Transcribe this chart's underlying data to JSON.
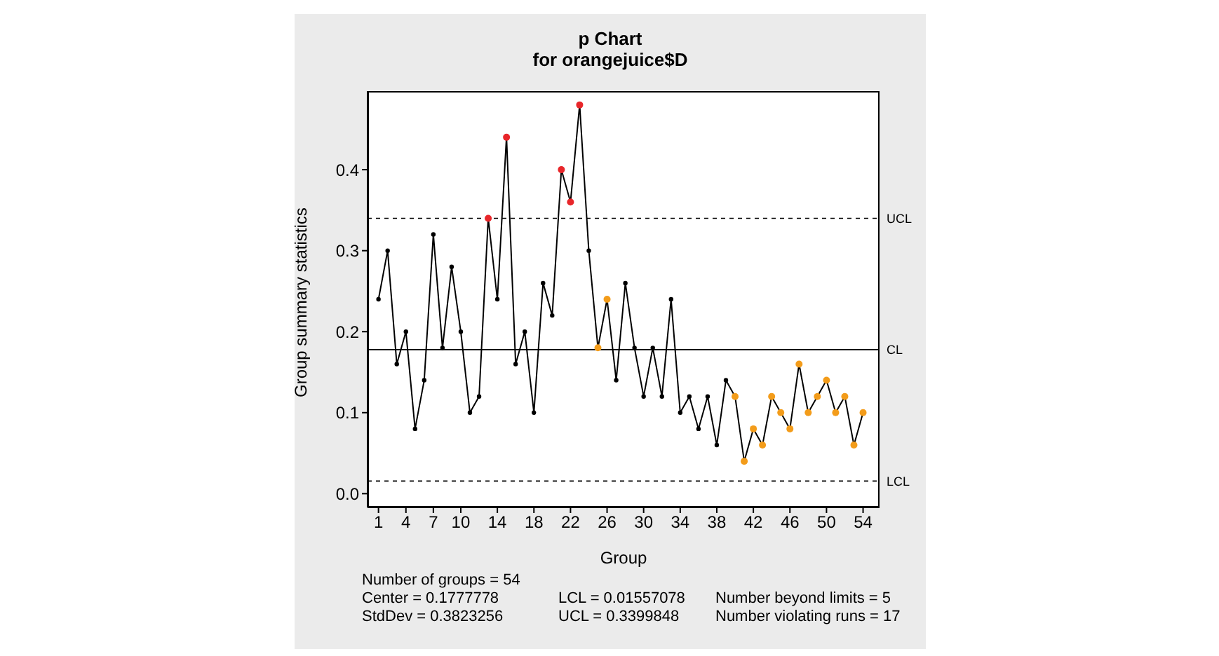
{
  "chart_data": {
    "type": "line",
    "title": "p Chart",
    "subtitle": "for orangejuice$D",
    "xlabel": "Group",
    "ylabel": "Group summary statistics",
    "x": [
      1,
      2,
      3,
      4,
      5,
      6,
      7,
      8,
      9,
      10,
      11,
      12,
      13,
      14,
      15,
      16,
      17,
      18,
      19,
      20,
      21,
      22,
      23,
      24,
      25,
      26,
      27,
      28,
      29,
      30,
      31,
      32,
      33,
      34,
      35,
      36,
      37,
      38,
      39,
      40,
      41,
      42,
      43,
      44,
      45,
      46,
      47,
      48,
      49,
      50,
      51,
      52,
      53,
      54
    ],
    "series": [
      {
        "color": "#000000",
        "values": [
          0.24,
          0.3,
          0.16,
          0.2,
          0.08,
          0.14,
          0.32,
          0.18,
          0.28,
          0.2,
          0.1,
          0.12,
          0.34,
          0.24,
          0.44,
          0.16,
          0.2,
          0.1,
          0.26,
          0.22,
          0.4,
          0.36,
          0.48,
          0.3,
          0.18,
          0.24,
          0.14,
          0.26,
          0.18,
          0.12,
          0.18,
          0.12,
          0.24,
          0.1,
          0.12,
          0.08,
          0.12,
          0.06,
          0.14,
          0.12,
          0.04,
          0.08,
          0.06,
          0.12,
          0.1,
          0.08,
          0.16,
          0.1,
          0.12,
          0.14,
          0.1,
          0.12,
          0.06,
          0.1
        ],
        "colors": [
          "#000000",
          "#000000",
          "#000000",
          "#000000",
          "#000000",
          "#000000",
          "#000000",
          "#000000",
          "#000000",
          "#000000",
          "#000000",
          "#000000",
          "#e8262a",
          "#000000",
          "#e8262a",
          "#000000",
          "#000000",
          "#000000",
          "#000000",
          "#000000",
          "#e8262a",
          "#e8262a",
          "#e8262a",
          "#000000",
          "#f39c1a",
          "#f39c1a",
          "#000000",
          "#000000",
          "#000000",
          "#000000",
          "#000000",
          "#000000",
          "#000000",
          "#000000",
          "#000000",
          "#000000",
          "#000000",
          "#000000",
          "#000000",
          "#f39c1a",
          "#f39c1a",
          "#f39c1a",
          "#f39c1a",
          "#f39c1a",
          "#f39c1a",
          "#f39c1a",
          "#f39c1a",
          "#f39c1a",
          "#f39c1a",
          "#f39c1a",
          "#f39c1a",
          "#f39c1a",
          "#f39c1a",
          "#f39c1a"
        ]
      }
    ],
    "xlim": [
      -0.2,
      55.8
    ],
    "xticks": [
      1,
      4,
      7,
      10,
      14,
      18,
      22,
      26,
      30,
      34,
      38,
      42,
      46,
      50,
      54
    ],
    "ylim": [
      -0.017,
      0.497
    ],
    "yticks": [
      {
        "value": 0,
        "label": "0.0"
      },
      0.1,
      0.2,
      0.3,
      0.4
    ],
    "ref_lines": [
      {
        "axis": "y",
        "value": 0.3399848,
        "label": "UCL",
        "line_style": "dashed"
      },
      {
        "axis": "y",
        "value": 0.1777778,
        "label": "CL",
        "line_style": "solid"
      },
      {
        "axis": "y",
        "value": 0.01557078,
        "label": "LCL",
        "line_style": "dashed"
      }
    ],
    "annotations": [
      "Number of groups = 54",
      "Center = 0.1777778",
      "StdDev = 0.3823256",
      "LCL = 0.01557078",
      "UCL = 0.3399848",
      "Number beyond limits = 5",
      "Number violating runs = 17"
    ],
    "grid": false,
    "marker": "circle",
    "line_style": "solid"
  }
}
